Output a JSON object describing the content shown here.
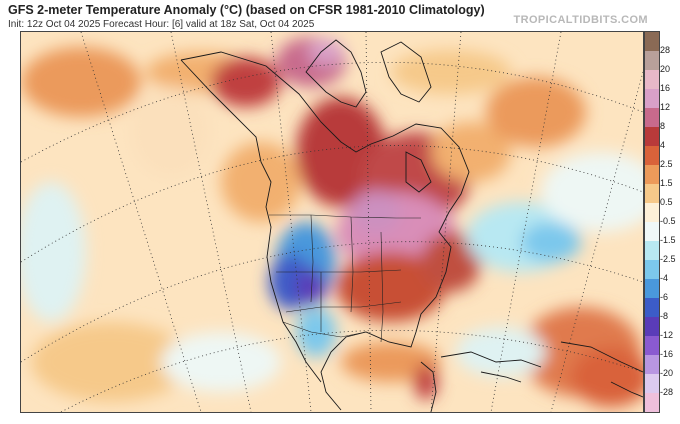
{
  "header": {
    "title": "GFS 2-meter Temperature Anomaly (°C) (based on CFSR 1981-2010 Climatology)",
    "subtitle": "Init: 12z Oct 04 2025   Forecast Hour: [6]   valid at 18z Sat, Oct 04 2025",
    "brand": "TROPICALTIDBITS.COM"
  },
  "colorbar": {
    "labels": [
      "28",
      "20",
      "16",
      "12",
      "8",
      "4",
      "2.5",
      "1.5",
      "0.5",
      "-0.5",
      "-1.5",
      "-2.5",
      "-4",
      "-6",
      "-8",
      "-12",
      "-16",
      "-20",
      "-28"
    ],
    "colors": [
      "#8a6a55",
      "#b8a09a",
      "#e8b8c8",
      "#d9a0c8",
      "#c86a8c",
      "#b83a3a",
      "#d9623a",
      "#ec9a5a",
      "#f6c98a",
      "#fdf0d8",
      "#f0f8f8",
      "#b8e8f2",
      "#7cc8ec",
      "#4a98dc",
      "#3c5cc8",
      "#5a3cb8",
      "#8a5ad0",
      "#b896e2",
      "#dccaf0",
      "#efc0dc"
    ]
  },
  "map": {
    "region": "North America",
    "features": [
      "anomaly-fill",
      "coastlines",
      "state-borders",
      "lat-lon-graticule"
    ]
  }
}
